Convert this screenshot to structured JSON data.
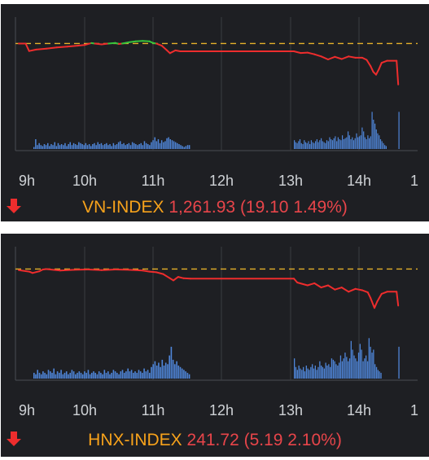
{
  "chart_data": [
    {
      "type": "line",
      "title": "VN-INDEX",
      "summary": {
        "index": "VN-INDEX",
        "value": "1,261.93",
        "change": "(19.10 1.49%)",
        "direction": "down"
      },
      "x_ticks": [
        "9h",
        "10h",
        "11h",
        "12h",
        "13h",
        "14h",
        "1"
      ],
      "reference_level": 1281.03,
      "ylim": [
        1252,
        1288
      ],
      "colors": {
        "up": "#36c43c",
        "down": "#ee2d2d",
        "reference": "#e6b12a",
        "volume": "#4f86d9"
      },
      "series": [
        {
          "values": [
            [
              9.0,
              1281.0
            ],
            [
              9.1,
              1281.0
            ],
            [
              9.15,
              1277.5
            ],
            [
              9.25,
              1278.2
            ],
            [
              9.4,
              1278.6
            ],
            [
              9.55,
              1279.2
            ],
            [
              9.7,
              1279.6
            ],
            [
              9.85,
              1280.0
            ],
            [
              9.95,
              1280.3
            ],
            [
              10.05,
              1281.2
            ],
            [
              10.1,
              1281.0
            ],
            [
              10.2,
              1280.6
            ],
            [
              10.3,
              1281.0
            ],
            [
              10.4,
              1281.3
            ],
            [
              10.45,
              1280.8
            ],
            [
              10.5,
              1281.0
            ],
            [
              10.6,
              1281.6
            ],
            [
              10.7,
              1282.0
            ],
            [
              10.8,
              1282.2
            ],
            [
              10.9,
              1282.0
            ],
            [
              10.95,
              1281.3
            ],
            [
              11.0,
              1281.0
            ],
            [
              11.08,
              1280.0
            ],
            [
              11.15,
              1278.0
            ],
            [
              11.2,
              1276.5
            ],
            [
              11.28,
              1277.8
            ],
            [
              11.35,
              1277.4
            ],
            [
              11.5,
              1277.4
            ],
            [
              13.0,
              1277.4
            ],
            [
              13.1,
              1276.6
            ],
            [
              13.2,
              1276.8
            ],
            [
              13.3,
              1276.0
            ],
            [
              13.4,
              1275.0
            ],
            [
              13.5,
              1273.6
            ],
            [
              13.6,
              1274.8
            ],
            [
              13.7,
              1273.8
            ],
            [
              13.8,
              1275.0
            ],
            [
              13.9,
              1274.4
            ],
            [
              14.0,
              1274.4
            ],
            [
              14.08,
              1273.4
            ],
            [
              14.15,
              1270.5
            ],
            [
              14.2,
              1267.8
            ],
            [
              14.25,
              1266.5
            ],
            [
              14.3,
              1269.0
            ],
            [
              14.35,
              1272.0
            ],
            [
              14.45,
              1273.0
            ],
            [
              14.62,
              1273.0
            ],
            [
              14.65,
              1261.93
            ]
          ]
        }
      ],
      "volume": {
        "session1": [
          2,
          10,
          4,
          6,
          4,
          3,
          5,
          4,
          6,
          3,
          5,
          4,
          7,
          3,
          6,
          4,
          5,
          4,
          6,
          3,
          5,
          7,
          4,
          6,
          5,
          4,
          7,
          6,
          5,
          4,
          6,
          4,
          5,
          3,
          5,
          6,
          4,
          7,
          5,
          6,
          4,
          5,
          6,
          4,
          5,
          3,
          6,
          4,
          5,
          7,
          8,
          5,
          6,
          4,
          5,
          6,
          4,
          7,
          6,
          5,
          4,
          5,
          6,
          4,
          8,
          6,
          5,
          4,
          7,
          9,
          12,
          8,
          10,
          6,
          9,
          7,
          8,
          11,
          12,
          10,
          9,
          8,
          7,
          6,
          5,
          4,
          3,
          2,
          3,
          4,
          4
        ],
        "session2": [
          9,
          7,
          6,
          8,
          10,
          6,
          5,
          9,
          7,
          6,
          8,
          5,
          9,
          7,
          6,
          8,
          10,
          7,
          9,
          11,
          8,
          7,
          6,
          9,
          8,
          12,
          10,
          9,
          11,
          13,
          8,
          12,
          10,
          9,
          14,
          10,
          11,
          12,
          18,
          14,
          10,
          12,
          9,
          11,
          16,
          12,
          13,
          14,
          22,
          18,
          12,
          10,
          14,
          11,
          13,
          38,
          30,
          26,
          20,
          16,
          14,
          10,
          8,
          6,
          4,
          3,
          0,
          0,
          0,
          0,
          0,
          0,
          0,
          0,
          38
        ]
      }
    },
    {
      "type": "line",
      "title": "HNX-INDEX",
      "summary": {
        "index": "HNX-INDEX",
        "value": "241.72",
        "change": "(5.19 2.10%)",
        "direction": "down"
      },
      "x_ticks": [
        "9h",
        "10h",
        "11h",
        "12h",
        "13h",
        "14h",
        "1"
      ],
      "reference_level": 246.91,
      "ylim": [
        239,
        248
      ],
      "colors": {
        "up": "#36c43c",
        "down": "#ee2d2d",
        "reference": "#e6b12a",
        "volume": "#4f86d9"
      },
      "series": [
        {
          "values": [
            [
              9.0,
              246.75
            ],
            [
              9.15,
              246.55
            ],
            [
              9.2,
              246.35
            ],
            [
              9.3,
              246.6
            ],
            [
              9.35,
              246.85
            ],
            [
              9.4,
              246.9
            ],
            [
              9.6,
              246.7
            ],
            [
              9.8,
              246.8
            ],
            [
              10.0,
              246.85
            ],
            [
              10.2,
              246.75
            ],
            [
              10.4,
              246.85
            ],
            [
              10.6,
              246.8
            ],
            [
              10.8,
              246.7
            ],
            [
              10.9,
              246.55
            ],
            [
              11.0,
              246.45
            ],
            [
              11.1,
              246.2
            ],
            [
              11.2,
              245.6
            ],
            [
              11.25,
              245.3
            ],
            [
              11.32,
              245.8
            ],
            [
              11.4,
              245.6
            ],
            [
              11.5,
              245.55
            ],
            [
              13.0,
              245.55
            ],
            [
              13.05,
              245.0
            ],
            [
              13.2,
              244.6
            ],
            [
              13.3,
              244.9
            ],
            [
              13.4,
              244.3
            ],
            [
              13.5,
              244.6
            ],
            [
              13.6,
              244.0
            ],
            [
              13.7,
              244.3
            ],
            [
              13.8,
              243.7
            ],
            [
              13.9,
              244.1
            ],
            [
              14.0,
              243.9
            ],
            [
              14.1,
              243.6
            ],
            [
              14.15,
              242.8
            ],
            [
              14.22,
              241.4
            ],
            [
              14.27,
              242.3
            ],
            [
              14.35,
              243.4
            ],
            [
              14.45,
              243.7
            ],
            [
              14.62,
              243.7
            ],
            [
              14.65,
              241.72
            ]
          ]
        }
      ],
      "volume": {
        "session1": [
          4,
          3,
          6,
          4,
          3,
          5,
          4,
          3,
          6,
          5,
          4,
          7,
          3,
          5,
          4,
          6,
          3,
          4,
          5,
          3,
          4,
          6,
          5,
          3,
          4,
          5,
          4,
          3,
          5,
          4,
          6,
          3,
          4,
          5,
          4,
          3,
          5,
          4,
          3,
          6,
          4,
          5,
          3,
          4,
          6,
          5,
          4,
          3,
          5,
          6,
          4,
          5,
          7,
          5,
          6,
          4,
          5,
          4,
          6,
          5,
          4,
          7,
          5,
          6,
          4,
          8,
          10,
          12,
          9,
          11,
          8,
          13,
          9,
          11,
          10,
          16,
          22,
          13,
          10,
          12,
          9,
          8,
          7,
          6,
          5,
          4,
          3
        ],
        "session2": [
          14,
          8,
          6,
          9,
          7,
          6,
          8,
          5,
          9,
          7,
          6,
          8,
          10,
          7,
          9,
          6,
          8,
          12,
          9,
          8,
          7,
          11,
          9,
          10,
          8,
          14,
          13,
          12,
          10,
          9,
          11,
          16,
          12,
          14,
          18,
          15,
          12,
          14,
          26,
          20,
          16,
          14,
          12,
          18,
          24,
          20,
          12,
          14,
          16,
          12,
          28,
          22,
          18,
          20,
          10,
          8,
          6,
          5,
          4,
          0,
          0,
          0,
          0,
          0,
          0,
          0,
          0,
          0,
          0,
          0,
          22
        ]
      }
    }
  ]
}
